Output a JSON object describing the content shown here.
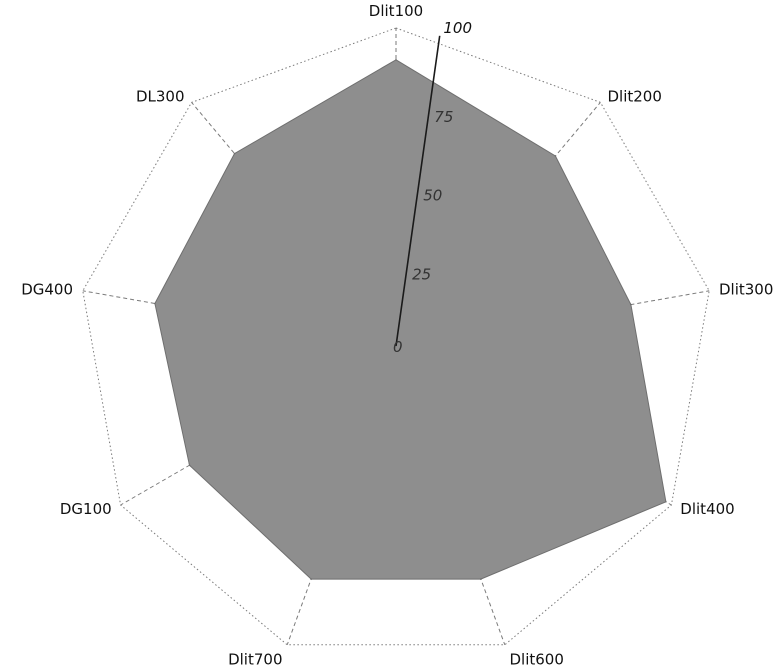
{
  "chart_data": {
    "type": "radar",
    "title": "",
    "categories": [
      "Dlit100",
      "Dlit200",
      "Dlit300",
      "Dlit400",
      "Dlit600",
      "Dlit700",
      "DG100",
      "DG400",
      "DL300"
    ],
    "series": [
      {
        "values": [
          90,
          78,
          75,
          98,
          78,
          78,
          75,
          77,
          79
        ]
      }
    ],
    "rlim": [
      0,
      100
    ],
    "ticks": [
      0,
      25,
      50,
      75,
      100
    ],
    "tick_labels": [
      "0",
      "25",
      "50",
      "75",
      "100"
    ],
    "grid": true,
    "legend": "none",
    "colors": {
      "fill": "#8e8e8e",
      "grid": "#7a7a7a",
      "axis": "#1a1a1a",
      "text": "#111111"
    }
  }
}
